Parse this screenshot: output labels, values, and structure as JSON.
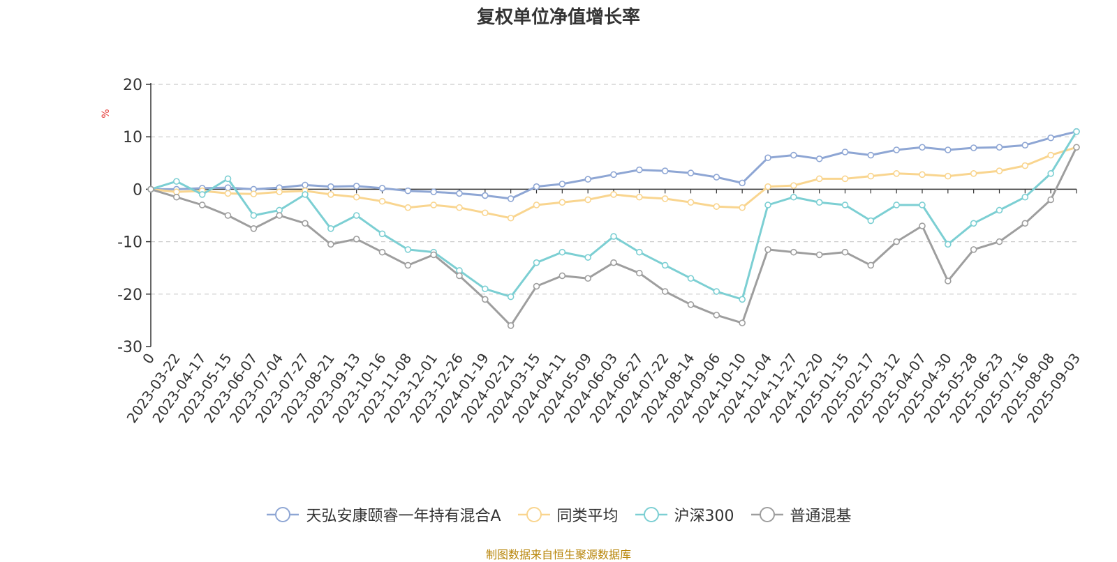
{
  "chart_data": {
    "type": "line",
    "title": "复权单位净值增长率",
    "ylabel": "%",
    "ylim": [
      -30,
      20
    ],
    "yticks": [
      20,
      10,
      0,
      -10,
      -20,
      -30
    ],
    "grid": true,
    "legend_position": "bottom",
    "x_tick_labels": [
      "0",
      "2023-03-22",
      "2023-04-17",
      "2023-05-15",
      "2023-06-07",
      "2023-07-04",
      "2023-07-27",
      "2023-08-21",
      "2023-09-13",
      "2023-10-16",
      "2023-11-08",
      "2023-12-01",
      "2023-12-26",
      "2024-01-19",
      "2024-02-21",
      "2024-03-15",
      "2024-04-11",
      "2024-05-09",
      "2024-06-03",
      "2024-06-27",
      "2024-07-22",
      "2024-08-14",
      "2024-09-06",
      "2024-10-10",
      "2024-11-04",
      "2024-11-27",
      "2024-12-20",
      "2025-01-15",
      "2025-02-17",
      "2025-03-12",
      "2025-04-07",
      "2025-04-30",
      "2025-05-28",
      "2025-06-23",
      "2025-07-16",
      "2025-08-08",
      "2025-09-03"
    ],
    "series": [
      {
        "name": "天弘安康颐睿一年持有混合A",
        "color": "#8ea6d4",
        "values": [
          0,
          0,
          0.2,
          0.3,
          0,
          0.3,
          0.8,
          0.5,
          0.6,
          0.2,
          -0.3,
          -0.5,
          -0.8,
          -1.2,
          -1.8,
          0.5,
          1.0,
          1.9,
          2.8,
          3.7,
          3.5,
          3.1,
          2.3,
          1.2,
          6.0,
          6.5,
          5.8,
          7.1,
          6.5,
          7.5,
          8.0,
          7.5,
          7.9,
          8.0,
          8.4,
          9.8,
          11.0
        ]
      },
      {
        "name": "同类平均",
        "color": "#f9d58f",
        "values": [
          0,
          -0.5,
          -0.3,
          -0.8,
          -0.9,
          -0.5,
          -0.3,
          -1.0,
          -1.5,
          -2.3,
          -3.5,
          -3.0,
          -3.5,
          -4.5,
          -5.5,
          -3.0,
          -2.5,
          -2.0,
          -1.0,
          -1.5,
          -1.8,
          -2.5,
          -3.3,
          -3.5,
          0.5,
          0.7,
          2.0,
          2.0,
          2.5,
          3.0,
          2.8,
          2.5,
          3.0,
          3.5,
          4.5,
          6.5,
          8.0
        ]
      },
      {
        "name": "沪深300",
        "color": "#7ccfd3",
        "values": [
          0,
          1.5,
          -1.0,
          2.0,
          -5.0,
          -4.0,
          -1.0,
          -7.5,
          -5.0,
          -8.5,
          -11.5,
          -12.0,
          -15.5,
          -19.0,
          -20.5,
          -14.0,
          -12.0,
          -13.0,
          -9.0,
          -12.0,
          -14.5,
          -17.0,
          -19.5,
          -21.0,
          -3.0,
          -1.5,
          -2.5,
          -3.0,
          -6.0,
          -3.0,
          -3.0,
          -10.5,
          -6.5,
          -4.0,
          -1.5,
          3.0,
          11.0
        ]
      },
      {
        "name": "普通混基",
        "color": "#9e9e9e",
        "values": [
          0,
          -1.5,
          -3.0,
          -5.0,
          -7.5,
          -5.0,
          -6.5,
          -10.5,
          -9.5,
          -12.0,
          -14.5,
          -12.5,
          -16.5,
          -21.0,
          -26.0,
          -18.5,
          -16.5,
          -17.0,
          -14.0,
          -16.0,
          -19.5,
          -22.0,
          -24.0,
          -25.5,
          -11.5,
          -12.0,
          -12.5,
          -12.0,
          -14.5,
          -10.0,
          -7.0,
          -17.5,
          -11.5,
          -10.0,
          -6.5,
          -2.0,
          8.0
        ]
      }
    ]
  },
  "footer": {
    "source": "制图数据来自恒生聚源数据库"
  },
  "colors": {
    "title": "#333333",
    "axis": "#333333",
    "grid": "#cccccc",
    "ylabel": "#e53935",
    "footer": "#b8860b"
  }
}
